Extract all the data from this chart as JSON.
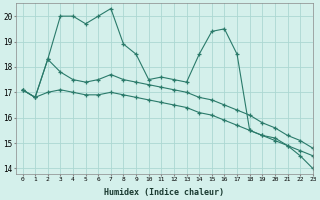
{
  "xlabel": "Humidex (Indice chaleur)",
  "background_color": "#d4f0eb",
  "grid_color": "#acd8d2",
  "line_color": "#2a7a6a",
  "xlim": [
    -0.5,
    23
  ],
  "ylim": [
    13.8,
    20.5
  ],
  "yticks": [
    14,
    15,
    16,
    17,
    18,
    19,
    20
  ],
  "xticks": [
    0,
    1,
    2,
    3,
    4,
    5,
    6,
    7,
    8,
    9,
    10,
    11,
    12,
    13,
    14,
    15,
    16,
    17,
    18,
    19,
    20,
    21,
    22,
    23
  ],
  "series": [
    {
      "x": [
        0,
        1,
        2,
        3,
        4,
        5,
        6,
        7,
        8,
        9,
        10,
        11,
        12,
        13,
        14,
        15,
        16,
        17,
        18,
        19,
        20,
        21,
        22,
        23
      ],
      "y": [
        17.1,
        16.8,
        18.3,
        20.0,
        20.0,
        19.7,
        20.0,
        20.3,
        18.9,
        18.5,
        17.5,
        17.6,
        17.5,
        17.4,
        18.5,
        19.4,
        19.5,
        18.5,
        15.5,
        15.3,
        15.2,
        14.9,
        14.5,
        14.0
      ]
    },
    {
      "x": [
        0,
        1,
        2,
        3,
        4,
        5,
        6,
        7,
        8,
        9,
        10,
        11,
        12,
        13,
        14,
        15,
        16,
        17,
        18,
        19,
        20,
        21,
        22,
        23
      ],
      "y": [
        17.1,
        16.8,
        18.3,
        17.8,
        17.5,
        17.4,
        17.5,
        17.7,
        17.5,
        17.4,
        17.3,
        17.2,
        17.1,
        17.0,
        16.8,
        16.7,
        16.5,
        16.3,
        16.1,
        15.8,
        15.6,
        15.3,
        15.1,
        14.8
      ]
    },
    {
      "x": [
        0,
        1,
        2,
        3,
        4,
        5,
        6,
        7,
        8,
        9,
        10,
        11,
        12,
        13,
        14,
        15,
        16,
        17,
        18,
        19,
        20,
        21,
        22,
        23
      ],
      "y": [
        17.1,
        16.8,
        17.0,
        17.1,
        17.0,
        16.9,
        16.9,
        17.0,
        16.9,
        16.8,
        16.7,
        16.6,
        16.5,
        16.4,
        16.2,
        16.1,
        15.9,
        15.7,
        15.5,
        15.3,
        15.1,
        14.9,
        14.7,
        14.5
      ]
    }
  ]
}
